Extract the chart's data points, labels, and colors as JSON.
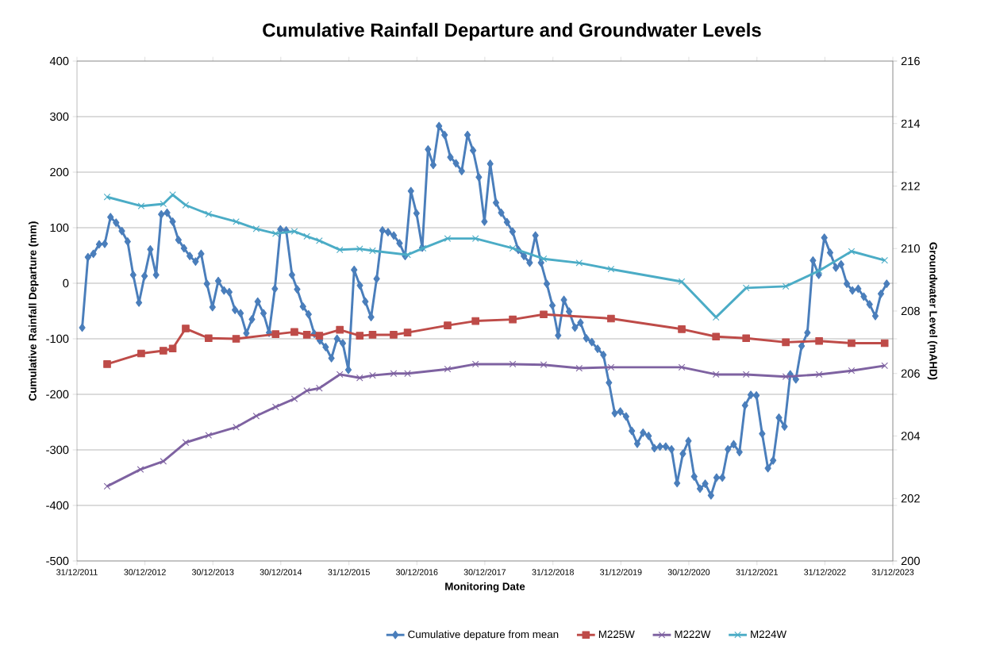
{
  "chart_data": {
    "type": "line",
    "title": "Cumulative Rainfall Departure and Groundwater Levels",
    "xlabel": "Monitoring Date",
    "ylabel": "Cumulative Rainfall Departure (mm)",
    "y2label": "Groundwater Level (mAHD)",
    "xlim": [
      "2011-12-31",
      "2023-12-31"
    ],
    "xticks": [
      {
        "value": "2011-12-31",
        "label": "31/12/2011"
      },
      {
        "value": "2012-12-30",
        "label": "30/12/2012"
      },
      {
        "value": "2013-12-30",
        "label": "30/12/2013"
      },
      {
        "value": "2014-12-30",
        "label": "30/12/2014"
      },
      {
        "value": "2015-12-31",
        "label": "31/12/2015"
      },
      {
        "value": "2016-12-30",
        "label": "30/12/2016"
      },
      {
        "value": "2017-12-30",
        "label": "30/12/2017"
      },
      {
        "value": "2018-12-31",
        "label": "31/12/2018"
      },
      {
        "value": "2019-12-31",
        "label": "31/12/2019"
      },
      {
        "value": "2020-12-30",
        "label": "30/12/2020"
      },
      {
        "value": "2021-12-31",
        "label": "31/12/2021"
      },
      {
        "value": "2022-12-31",
        "label": "31/12/2022"
      },
      {
        "value": "2023-12-31",
        "label": "31/12/2023"
      }
    ],
    "ylim": [
      -500,
      400
    ],
    "yticks": [
      -500,
      -400,
      -300,
      -200,
      -100,
      0,
      100,
      200,
      300,
      400
    ],
    "y2lim": [
      200,
      216
    ],
    "y2ticks": [
      200,
      202,
      204,
      206,
      208,
      210,
      212,
      214,
      216
    ],
    "grid": "y",
    "legend": "bottom",
    "series": [
      {
        "name": "Cumulative depature from mean",
        "color": "#4a7ebb",
        "marker": "diamond",
        "x": [
          "2012-01-28",
          "2012-02-28",
          "2012-03-28",
          "2012-04-28",
          "2012-05-28",
          "2012-06-28",
          "2012-07-28",
          "2012-08-28",
          "2012-09-28",
          "2012-10-28",
          "2012-11-28",
          "2012-12-28",
          "2013-01-28",
          "2013-02-28",
          "2013-03-28",
          "2013-04-28",
          "2013-05-28",
          "2013-06-28",
          "2013-07-28",
          "2013-08-28",
          "2013-09-28",
          "2013-10-28",
          "2013-11-28",
          "2013-12-28",
          "2014-01-28",
          "2014-02-28",
          "2014-03-28",
          "2014-04-28",
          "2014-05-28",
          "2014-06-28",
          "2014-07-28",
          "2014-08-28",
          "2014-09-28",
          "2014-10-28",
          "2014-11-28",
          "2014-12-28",
          "2015-01-28",
          "2015-02-28",
          "2015-03-28",
          "2015-04-28",
          "2015-05-28",
          "2015-06-28",
          "2015-07-28",
          "2015-08-28",
          "2015-09-28",
          "2015-10-28",
          "2015-11-28",
          "2015-12-28",
          "2016-01-28",
          "2016-02-28",
          "2016-03-28",
          "2016-04-28",
          "2016-05-28",
          "2016-06-28",
          "2016-07-28",
          "2016-08-28",
          "2016-09-28",
          "2016-10-28",
          "2016-11-28",
          "2016-12-28",
          "2017-01-28",
          "2017-02-28",
          "2017-03-28",
          "2017-04-28",
          "2017-05-28",
          "2017-06-28",
          "2017-07-28",
          "2017-08-28",
          "2017-09-28",
          "2017-10-28",
          "2017-11-28",
          "2017-12-28",
          "2018-01-28",
          "2018-02-28",
          "2018-03-28",
          "2018-04-28",
          "2018-05-28",
          "2018-06-28",
          "2018-07-28",
          "2018-08-28",
          "2018-09-28",
          "2018-10-28",
          "2018-11-28",
          "2018-12-28",
          "2019-01-28",
          "2019-02-28",
          "2019-03-28",
          "2019-04-28",
          "2019-05-28",
          "2019-06-28",
          "2019-07-28",
          "2019-08-28",
          "2019-09-28",
          "2019-10-28",
          "2019-11-28",
          "2019-12-28",
          "2020-01-28",
          "2020-02-28",
          "2020-03-28",
          "2020-04-28",
          "2020-05-28",
          "2020-06-28",
          "2020-07-28",
          "2020-08-28",
          "2020-09-28",
          "2020-10-28",
          "2020-11-28",
          "2020-12-28",
          "2021-01-28",
          "2021-02-28",
          "2021-03-28",
          "2021-04-28",
          "2021-05-28",
          "2021-06-28",
          "2021-07-28",
          "2021-08-28",
          "2021-09-28",
          "2021-10-28",
          "2021-11-28",
          "2021-12-28",
          "2022-01-28",
          "2022-02-28",
          "2022-03-28",
          "2022-04-28",
          "2022-05-28",
          "2022-06-28",
          "2022-07-28",
          "2022-08-28",
          "2022-09-28",
          "2022-10-28",
          "2022-11-28",
          "2022-12-28",
          "2023-01-28",
          "2023-02-28",
          "2023-03-28",
          "2023-04-28",
          "2023-05-28",
          "2023-06-28",
          "2023-07-28",
          "2023-08-28",
          "2023-09-28",
          "2023-10-28",
          "2023-11-28"
        ],
        "values": [
          -80,
          47,
          53,
          70,
          71,
          119,
          109,
          94,
          75,
          15,
          -35,
          13,
          61,
          15,
          124,
          127,
          111,
          78,
          63,
          49,
          39,
          53,
          -1,
          -43,
          4,
          -13,
          -16,
          -48,
          -54,
          -90,
          -65,
          -33,
          -54,
          -89,
          -10,
          97,
          95,
          15,
          -11,
          -42,
          -56,
          -91,
          -103,
          -115,
          -135,
          -100,
          -108,
          -156,
          24,
          -4,
          -33,
          -61,
          8,
          95,
          92,
          86,
          72,
          49,
          166,
          126,
          64,
          241,
          213,
          283,
          267,
          227,
          216,
          202,
          267,
          239,
          191,
          111,
          215,
          145,
          127,
          110,
          93,
          60,
          49,
          37,
          86,
          37,
          -1,
          -40,
          -94,
          -30,
          -51,
          -80,
          -71,
          -99,
          -106,
          -118,
          -129,
          -179,
          -234,
          -231,
          -240,
          -266,
          -289,
          -269,
          -275,
          -297,
          -294,
          -294,
          -299,
          -360,
          -307,
          -284,
          -348,
          -370,
          -361,
          -382,
          -350,
          -350,
          -299,
          -290,
          -304,
          -220,
          -201,
          -202,
          -271,
          -333,
          -319,
          -242,
          -258,
          -164,
          -173,
          -113,
          -89,
          41,
          15,
          82,
          55,
          28,
          34,
          -1,
          -13,
          -10,
          -24,
          -38,
          -59,
          -19,
          -1
        ]
      },
      {
        "name": "M225W",
        "color": "#be4b48",
        "marker": "square",
        "axis": "y2",
        "x": [
          "2012-06-10",
          "2012-12-10",
          "2013-04-08",
          "2013-05-28",
          "2013-08-06",
          "2013-12-07",
          "2014-05-04",
          "2014-12-02",
          "2015-03-13",
          "2015-05-19",
          "2015-07-25",
          "2015-11-12",
          "2016-02-27",
          "2016-05-06",
          "2016-08-27",
          "2016-11-10",
          "2017-06-13",
          "2017-11-10",
          "2018-05-29",
          "2018-11-11",
          "2019-11-08",
          "2020-11-22",
          "2021-05-25",
          "2021-11-03",
          "2022-06-04",
          "2022-11-30",
          "2023-05-23",
          "2023-11-17"
        ],
        "values": [
          206.3,
          206.64,
          206.73,
          206.8,
          207.44,
          207.13,
          207.11,
          207.26,
          207.33,
          207.24,
          207.21,
          207.4,
          207.21,
          207.24,
          207.24,
          207.31,
          207.54,
          207.68,
          207.73,
          207.89,
          207.76,
          207.42,
          207.18,
          207.13,
          207.0,
          207.04,
          206.97,
          206.97
        ]
      },
      {
        "name": "M222W",
        "color": "#7e62a1",
        "marker": "cross",
        "axis": "y2",
        "x": [
          "2012-06-10",
          "2012-12-06",
          "2013-04-08",
          "2013-08-06",
          "2013-12-07",
          "2014-05-04",
          "2014-08-20",
          "2014-12-02",
          "2015-03-13",
          "2015-05-19",
          "2015-07-25",
          "2015-11-12",
          "2016-02-27",
          "2016-05-06",
          "2016-08-27",
          "2016-11-10",
          "2017-06-13",
          "2017-11-10",
          "2018-05-29",
          "2018-11-11",
          "2019-05-21",
          "2019-11-08",
          "2020-11-22",
          "2021-05-25",
          "2021-11-03",
          "2022-06-04",
          "2022-11-30",
          "2023-05-23",
          "2023-11-17"
        ],
        "values": [
          202.39,
          202.93,
          203.19,
          203.79,
          204.02,
          204.28,
          204.64,
          204.93,
          205.19,
          205.45,
          205.53,
          205.97,
          205.86,
          205.94,
          206.0,
          206.0,
          206.14,
          206.3,
          206.3,
          206.28,
          206.17,
          206.2,
          206.2,
          205.97,
          205.97,
          205.9,
          205.97,
          206.09,
          206.25
        ]
      },
      {
        "name": "M224W",
        "color": "#4bacc6",
        "marker": "cross",
        "axis": "y2",
        "x": [
          "2012-06-10",
          "2012-12-10",
          "2013-04-08",
          "2013-05-28",
          "2013-08-06",
          "2013-12-07",
          "2014-05-04",
          "2014-08-20",
          "2014-12-02",
          "2015-03-13",
          "2015-05-19",
          "2015-07-25",
          "2015-11-12",
          "2016-02-27",
          "2016-05-06",
          "2016-11-10",
          "2017-02-01",
          "2017-06-13",
          "2017-11-10",
          "2018-05-29",
          "2018-11-11",
          "2019-05-21",
          "2019-11-08",
          "2020-11-22",
          "2021-05-25",
          "2021-11-03",
          "2022-06-04",
          "2022-11-30",
          "2023-05-23",
          "2023-11-17"
        ],
        "values": [
          211.65,
          211.36,
          211.43,
          211.72,
          211.39,
          211.1,
          210.86,
          210.63,
          210.48,
          210.55,
          210.39,
          210.25,
          209.96,
          209.99,
          209.93,
          209.8,
          210.01,
          210.32,
          210.32,
          210.01,
          209.67,
          209.54,
          209.34,
          208.94,
          207.8,
          208.74,
          208.79,
          209.29,
          209.91,
          209.62
        ]
      }
    ]
  }
}
